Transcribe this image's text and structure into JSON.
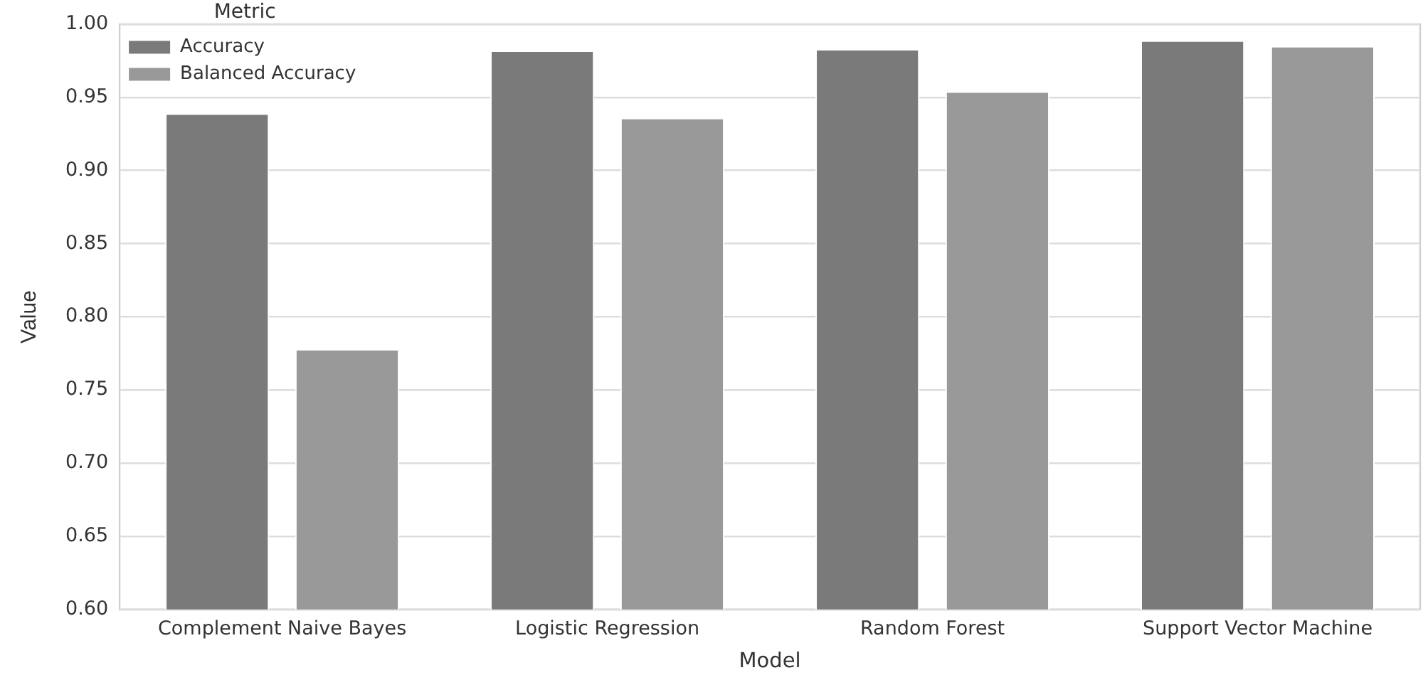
{
  "chart_data": {
    "type": "bar",
    "xlabel": "Model",
    "ylabel": "Value",
    "legend_title": "Metric",
    "categories": [
      "Complement Naive Bayes",
      "Logistic Regression",
      "Random Forest",
      "Support Vector Machine"
    ],
    "series": [
      {
        "name": "Accuracy",
        "color": "#7a7a7a",
        "values": [
          0.939,
          0.982,
          0.983,
          0.989
        ]
      },
      {
        "name": "Balanced Accuracy",
        "color": "#999999",
        "values": [
          0.778,
          0.936,
          0.954,
          0.985
        ]
      }
    ],
    "ylim": [
      0.6,
      1.0
    ],
    "yticks": [
      {
        "value": 0.6,
        "label": "0.60"
      },
      {
        "value": 0.65,
        "label": "0.65"
      },
      {
        "value": 0.7,
        "label": "0.70"
      },
      {
        "value": 0.75,
        "label": "0.75"
      },
      {
        "value": 0.8,
        "label": "0.80"
      },
      {
        "value": 0.85,
        "label": "0.85"
      },
      {
        "value": 0.9,
        "label": "0.90"
      },
      {
        "value": 0.95,
        "label": "0.95"
      },
      {
        "value": 1.0,
        "label": "1.00"
      }
    ],
    "grid": "y",
    "legend": "top left"
  }
}
